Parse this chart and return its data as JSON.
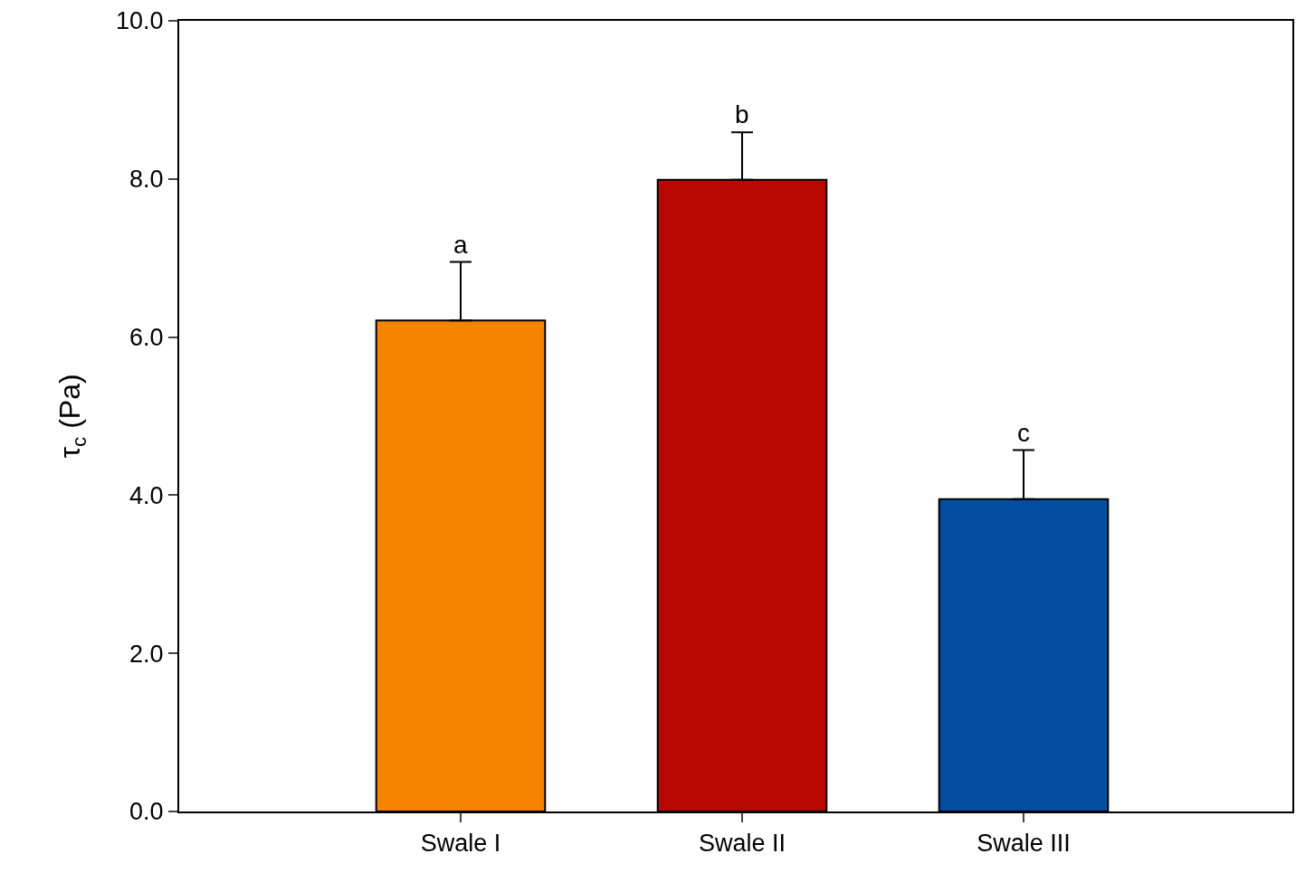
{
  "chart_data": {
    "type": "bar",
    "ylabel": "τ$_{c}$ (Pa)",
    "categories": [
      "Swale I",
      "Swale II",
      "Swale III"
    ],
    "values": [
      6.21,
      7.99,
      3.95
    ],
    "colors": [
      "#f78400",
      "#b80800",
      "#034ea2"
    ],
    "errors": [
      [
        6.21,
        6.95
      ],
      [
        7.99,
        8.59
      ],
      [
        3.95,
        4.57
      ]
    ],
    "ylim": [
      0,
      10
    ],
    "yticks": [
      {
        "value": 0,
        "label": "0.0"
      },
      {
        "value": 2,
        "label": "2.0"
      },
      {
        "value": 4,
        "label": "4.0"
      },
      {
        "value": 6,
        "label": "6.0"
      },
      {
        "value": 8,
        "label": "8.0"
      },
      {
        "value": 10,
        "label": "10.0"
      }
    ],
    "annotations": [
      "a",
      "b",
      "c"
    ]
  }
}
